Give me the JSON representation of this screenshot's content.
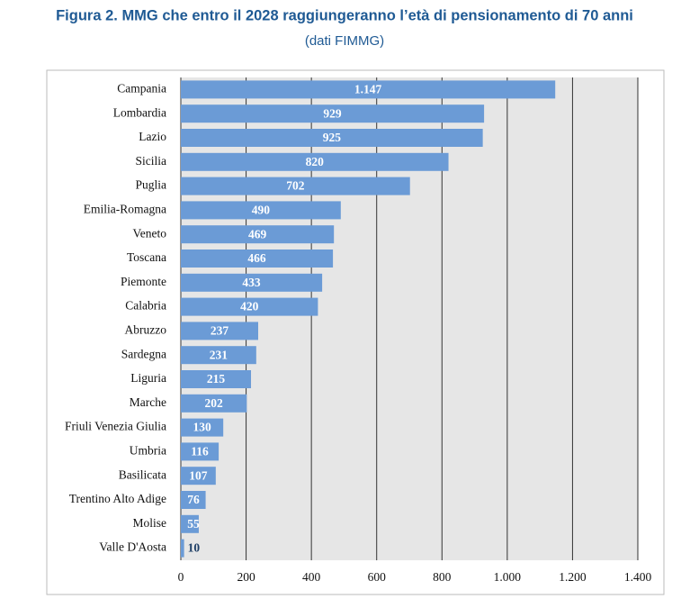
{
  "chart_data": {
    "type": "bar",
    "orientation": "horizontal",
    "title": "Figura 2. MMG che entro il 2028 raggiungeranno l’età di pensionamento di 70 anni",
    "subtitle": "(dati FIMMG)",
    "categories": [
      "Campania",
      "Lombardia",
      "Lazio",
      "Sicilia",
      "Puglia",
      "Emilia-Romagna",
      "Veneto",
      "Toscana",
      "Piemonte",
      "Calabria",
      "Abruzzo",
      "Sardegna",
      "Liguria",
      "Marche",
      "Friuli Venezia Giulia",
      "Umbria",
      "Basilicata",
      "Trentino Alto Adige",
      "Molise",
      "Valle D'Aosta"
    ],
    "values": [
      1147,
      929,
      925,
      820,
      702,
      490,
      469,
      466,
      433,
      420,
      237,
      231,
      215,
      202,
      130,
      116,
      107,
      76,
      55,
      10
    ],
    "value_labels": [
      "1.147",
      "929",
      "925",
      "820",
      "702",
      "490",
      "469",
      "466",
      "433",
      "420",
      "237",
      "231",
      "215",
      "202",
      "130",
      "116",
      "107",
      "76",
      "55",
      "10"
    ],
    "color": "#6b9bd6",
    "xlim": [
      0,
      1400
    ],
    "xticks": [
      0,
      200,
      400,
      600,
      800,
      {
        "value": 1000,
        "label": "1.000"
      },
      {
        "value": 1200,
        "label": "1.200"
      },
      {
        "value": 1400,
        "label": "1.400"
      }
    ],
    "grid": true
  }
}
